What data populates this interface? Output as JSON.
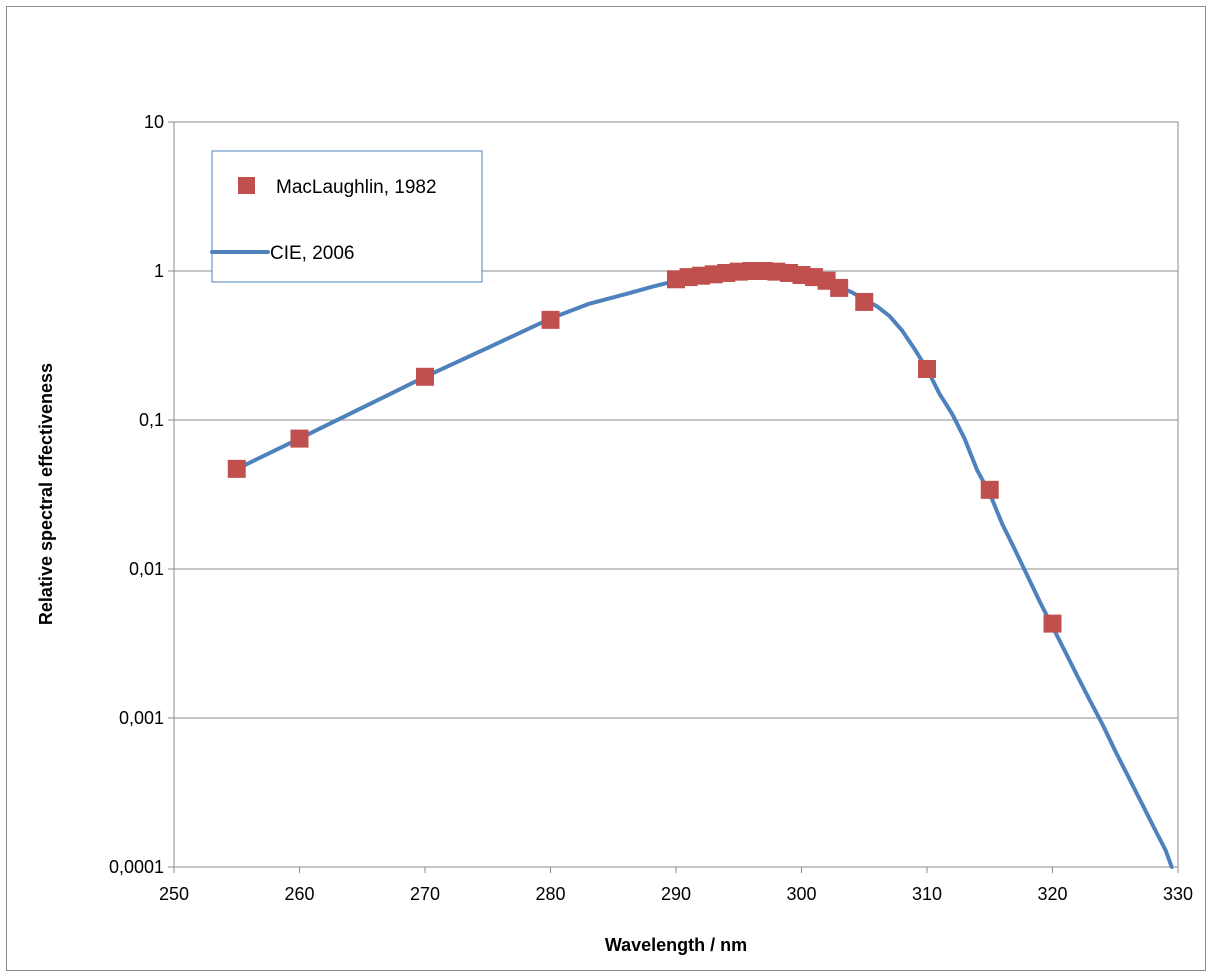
{
  "chart_data": {
    "type": "scatter",
    "title": "",
    "xlabel": "Wavelength / nm",
    "ylabel": "Relative spectral effectiveness",
    "xlim": [
      250,
      330
    ],
    "ylim": [
      0.0001,
      10
    ],
    "yscale": "log",
    "x_ticks": [
      "250",
      "260",
      "270",
      "280",
      "290",
      "300",
      "310",
      "320",
      "330"
    ],
    "y_ticks": [
      "0,0001",
      "0,001",
      "0,01",
      "0,1",
      "1",
      "10"
    ],
    "grid": "horizontal",
    "legend_position": "top-left",
    "series": [
      {
        "name": "MacLaughlin, 1982",
        "type": "scatter",
        "color": "#c0504d",
        "marker": "square",
        "points": [
          [
            255,
            0.047
          ],
          [
            260,
            0.075
          ],
          [
            270,
            0.195
          ],
          [
            280,
            0.47
          ],
          [
            290,
            0.88
          ],
          [
            291,
            0.91
          ],
          [
            292,
            0.93
          ],
          [
            293,
            0.95
          ],
          [
            294,
            0.97
          ],
          [
            295,
            0.99
          ],
          [
            296,
            1.0
          ],
          [
            297,
            1.0
          ],
          [
            298,
            0.99
          ],
          [
            299,
            0.97
          ],
          [
            300,
            0.94
          ],
          [
            301,
            0.91
          ],
          [
            302,
            0.86
          ],
          [
            303,
            0.77
          ],
          [
            305,
            0.62
          ],
          [
            310,
            0.22
          ],
          [
            315,
            0.034
          ],
          [
            320,
            0.0043
          ]
        ]
      },
      {
        "name": "CIE, 2006",
        "type": "line",
        "color": "#4f81bd",
        "points": [
          [
            255,
            0.047
          ],
          [
            260,
            0.075
          ],
          [
            265,
            0.121
          ],
          [
            270,
            0.195
          ],
          [
            275,
            0.305
          ],
          [
            280,
            0.48
          ],
          [
            283,
            0.6
          ],
          [
            286,
            0.7
          ],
          [
            288,
            0.78
          ],
          [
            290,
            0.86
          ],
          [
            292,
            0.93
          ],
          [
            294,
            0.97
          ],
          [
            296,
            1.0
          ],
          [
            298,
            1.0
          ],
          [
            300,
            0.95
          ],
          [
            302,
            0.86
          ],
          [
            304,
            0.72
          ],
          [
            306,
            0.58
          ],
          [
            307,
            0.5
          ],
          [
            308,
            0.4
          ],
          [
            309,
            0.3
          ],
          [
            310,
            0.22
          ],
          [
            311,
            0.15
          ],
          [
            312,
            0.11
          ],
          [
            313,
            0.075
          ],
          [
            314,
            0.046
          ],
          [
            315,
            0.032
          ],
          [
            316,
            0.02
          ],
          [
            317,
            0.0135
          ],
          [
            318,
            0.009
          ],
          [
            319,
            0.006
          ],
          [
            320,
            0.0041
          ],
          [
            321,
            0.0028
          ],
          [
            322,
            0.0019
          ],
          [
            323,
            0.0013
          ],
          [
            324,
            0.0009
          ],
          [
            325,
            0.0006
          ],
          [
            326,
            0.00041
          ],
          [
            327,
            0.00028
          ],
          [
            328,
            0.00019
          ],
          [
            329,
            0.00013
          ],
          [
            329.5,
            0.0001
          ]
        ]
      }
    ]
  }
}
